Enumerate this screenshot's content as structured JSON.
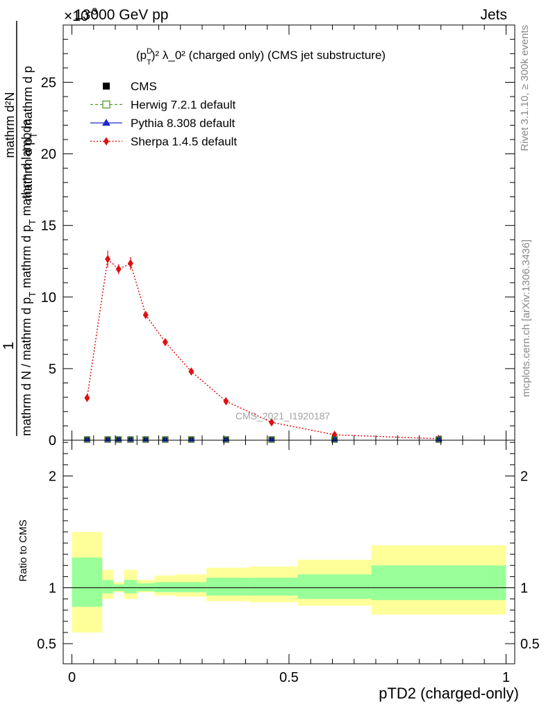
{
  "header": {
    "energy_label": "13000 GeV pp",
    "category_label": "Jets",
    "exponent_label": "×10",
    "exponent_value": "-3"
  },
  "side_labels": {
    "rivet": "Rivet 3.1.10, ≥ 300k events",
    "mcplots": "mcplots.cern.ch [arXiv:1306.3436]"
  },
  "watermark": "CMS_2021_I1920187",
  "top_title": {
    "prefix": "(p",
    "sup_D": "D",
    "sub_T": "T",
    "rest": ")² λ_0² (charged only) (CMS jet substructure)"
  },
  "ylabel_top": {
    "numerator": "1",
    "den_a": "mathrm d N / mathrm d p",
    "den_b": " mathrm d p",
    "den_c": " mathrm d lambda",
    "upper_a": "mathrm d²N",
    "upper_b": "mathrm d p",
    "upper_c": " mathrm d p",
    "upper_d": " mathrm d lambda",
    "sub_T": "T"
  },
  "ylabel_ratio": "Ratio to CMS",
  "xlabel": "pTD2 (charged-only)",
  "legend": [
    {
      "name": "CMS",
      "color": "#000000",
      "marker": "square-filled",
      "line": "none"
    },
    {
      "name": "Herwig 7.2.1 default",
      "color": "#4f9a2a",
      "marker": "square-open",
      "line": "dashed"
    },
    {
      "name": "Pythia 8.308 default",
      "color": "#1a2acf",
      "marker": "triangle",
      "line": "solid"
    },
    {
      "name": "Sherpa 1.4.5 default",
      "color": "#e01010",
      "marker": "diamond",
      "line": "dotted"
    }
  ],
  "chart_data": {
    "type": "line",
    "x_range": [
      -0.02,
      1.02
    ],
    "top_panel": {
      "ylim": [
        0,
        29
      ],
      "yticks": [
        0,
        5,
        10,
        15,
        20,
        25
      ],
      "ytick_labels": [
        "0",
        "5",
        "10",
        "15",
        "20",
        "25"
      ],
      "bin_edges": [
        0.0,
        0.07,
        0.095,
        0.12,
        0.15,
        0.19,
        0.24,
        0.31,
        0.41,
        0.52,
        0.69,
        1.0
      ],
      "x": [
        0.035,
        0.0825,
        0.1075,
        0.135,
        0.17,
        0.215,
        0.275,
        0.355,
        0.46,
        0.605,
        0.845
      ],
      "series": [
        {
          "name": "CMS",
          "values": [
            0,
            0,
            0,
            0,
            0,
            0,
            0,
            0,
            0,
            0,
            0
          ]
        },
        {
          "name": "Herwig 7.2.1 default",
          "values": [
            0,
            0,
            0,
            0,
            0,
            0,
            0,
            0,
            0,
            0,
            0
          ]
        },
        {
          "name": "Pythia 8.308 default",
          "values": [
            0,
            0,
            0,
            0,
            0,
            0,
            0,
            0,
            0,
            0,
            0
          ]
        },
        {
          "name": "Sherpa 1.4.5 default",
          "values": [
            2.95,
            12.65,
            11.95,
            12.35,
            8.75,
            6.85,
            4.8,
            2.72,
            1.25,
            0.38,
            0.1
          ],
          "errors": [
            0.15,
            0.6,
            0.35,
            0.45,
            0.25,
            0.2,
            0.12,
            0.08,
            0.05,
            0.03,
            0.02
          ]
        }
      ]
    },
    "ratio_panel": {
      "ylim": [
        0.32,
        2.32
      ],
      "yticks": [
        0.5,
        1,
        2
      ],
      "ytick_labels": [
        "0.5",
        "1",
        "2"
      ],
      "bin_edges": [
        0.0,
        0.07,
        0.095,
        0.12,
        0.15,
        0.19,
        0.24,
        0.31,
        0.41,
        0.52,
        0.69,
        1.0
      ],
      "inner_band": [
        [
          0.83,
          1.27
        ],
        [
          0.95,
          1.07
        ],
        [
          0.97,
          1.03
        ],
        [
          0.95,
          1.07
        ],
        [
          0.97,
          1.04
        ],
        [
          0.96,
          1.05
        ],
        [
          0.96,
          1.05
        ],
        [
          0.93,
          1.09
        ],
        [
          0.93,
          1.09
        ],
        [
          0.9,
          1.12
        ],
        [
          0.89,
          1.2
        ]
      ],
      "outer_band": [
        [
          0.6,
          1.5
        ],
        [
          0.9,
          1.16
        ],
        [
          0.96,
          1.05
        ],
        [
          0.9,
          1.16
        ],
        [
          0.96,
          1.07
        ],
        [
          0.93,
          1.11
        ],
        [
          0.92,
          1.12
        ],
        [
          0.88,
          1.18
        ],
        [
          0.87,
          1.19
        ],
        [
          0.84,
          1.25
        ],
        [
          0.76,
          1.38
        ]
      ],
      "reference": 1
    },
    "xticks": [
      0,
      0.5,
      1
    ],
    "xtick_labels": [
      "0",
      "0.5",
      "1"
    ]
  }
}
